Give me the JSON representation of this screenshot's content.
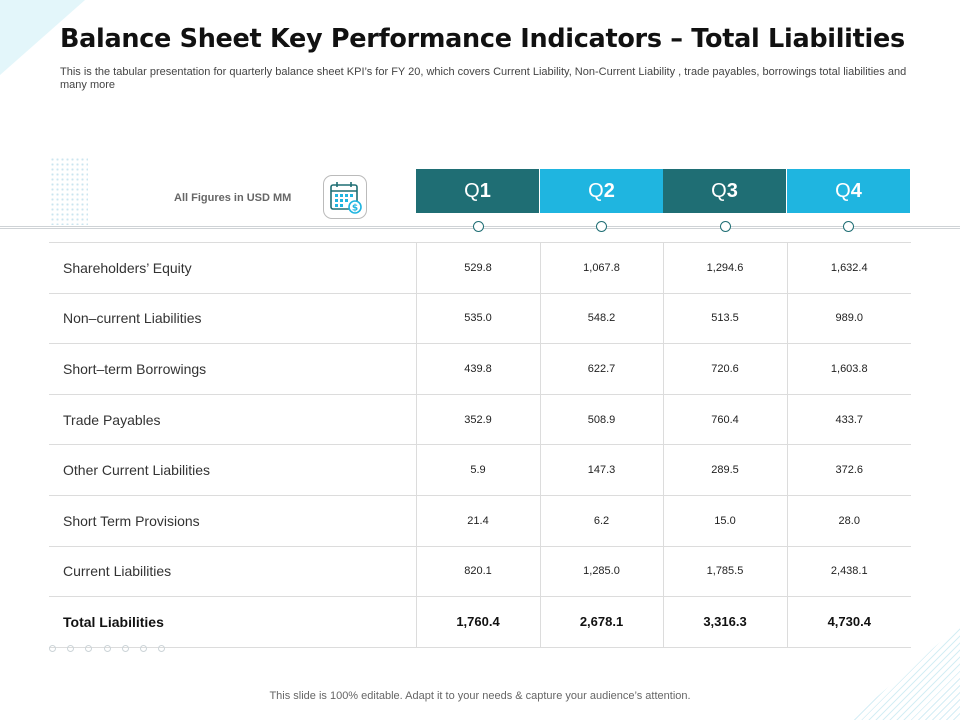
{
  "title": "Balance Sheet Key Performance Indicators – Total Liabilities",
  "subtitle": "This is the tabular presentation for quarterly balance sheet KPI’s for FY 20, which covers Current Liability, Non-Current Liability , trade payables, borrowings total liabilities and many more",
  "figures_label": "All Figures in USD MM",
  "calendar_icon": "calendar-dollar-icon",
  "colors": {
    "dark_teal": "#1f6e74",
    "light_blue": "#1fb5e0"
  },
  "quarters": [
    {
      "prefix": "Q",
      "num": "1"
    },
    {
      "prefix": "Q",
      "num": "2"
    },
    {
      "prefix": "Q",
      "num": "3"
    },
    {
      "prefix": "Q",
      "num": "4"
    }
  ],
  "rows": [
    {
      "label": "Shareholders’ Equity",
      "values": [
        "529.8",
        "1,067.8",
        "1,294.6",
        "1,632.4"
      ]
    },
    {
      "label": "Non–current Liabilities",
      "values": [
        "535.0",
        "548.2",
        "513.5",
        "989.0"
      ]
    },
    {
      "label": "Short–term Borrowings",
      "values": [
        "439.8",
        "622.7",
        "720.6",
        "1,603.8"
      ]
    },
    {
      "label": "Trade Payables",
      "values": [
        "352.9",
        "508.9",
        "760.4",
        "433.7"
      ]
    },
    {
      "label": "Other Current Liabilities",
      "values": [
        "5.9",
        "147.3",
        "289.5",
        "372.6"
      ]
    },
    {
      "label": "Short Term Provisions",
      "values": [
        "21.4",
        "6.2",
        "15.0",
        "28.0"
      ]
    },
    {
      "label": "Current Liabilities",
      "values": [
        "820.1",
        "1,285.0",
        "1,785.5",
        "2,438.1"
      ]
    },
    {
      "label": "Total Liabilities",
      "values": [
        "1,760.4",
        "2,678.1",
        "3,316.3",
        "4,730.4"
      ]
    }
  ],
  "footer": "This slide is 100% editable. Adapt it to your needs & capture your audience’s attention."
}
